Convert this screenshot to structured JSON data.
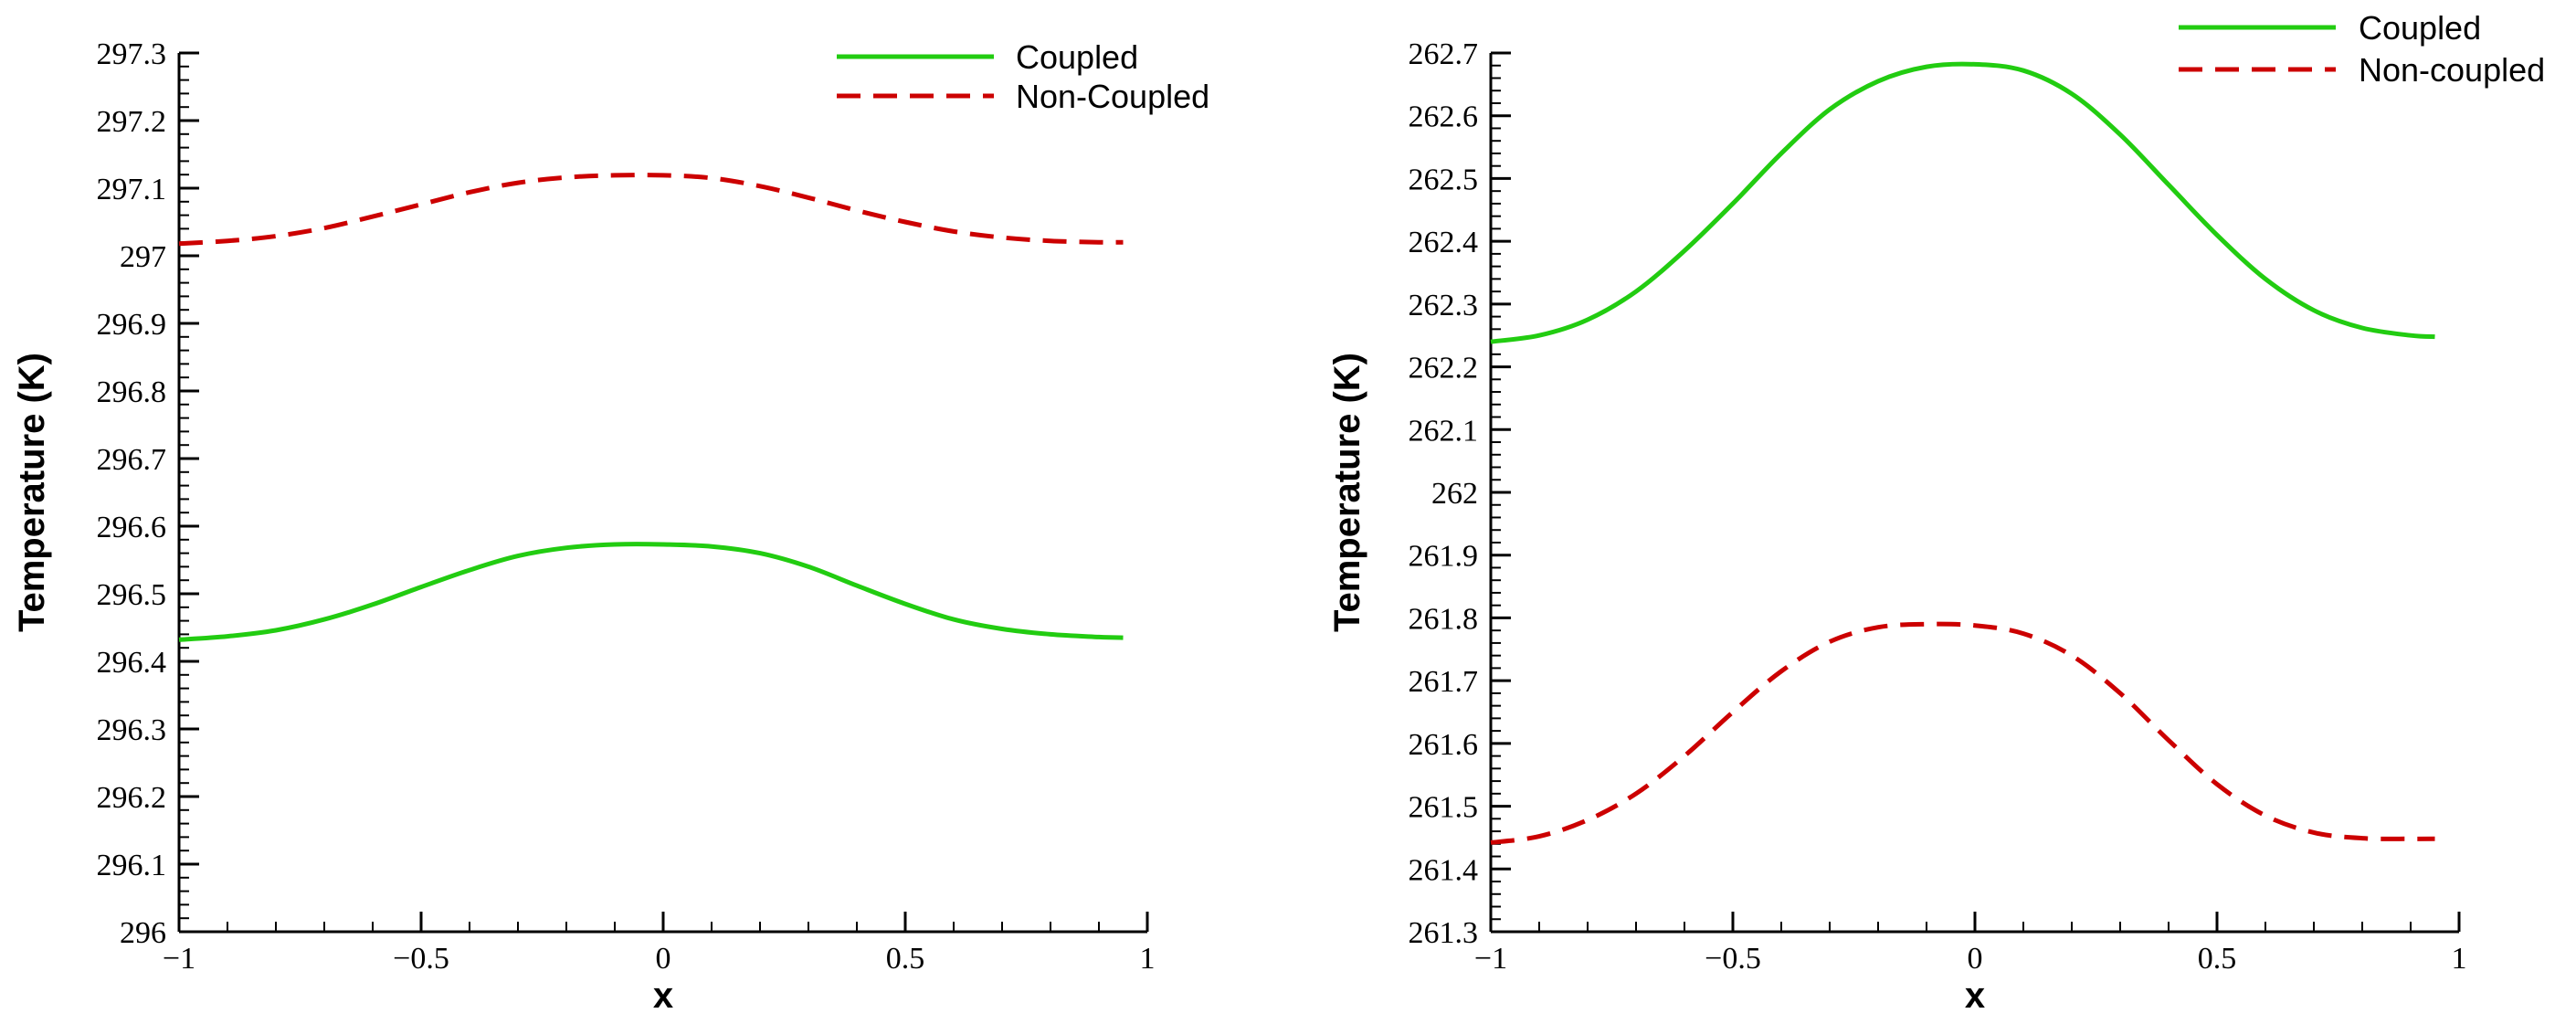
{
  "chart_data": [
    {
      "type": "line",
      "title": "",
      "xlabel": "x",
      "ylabel": "Temperature (K)",
      "xlim": [
        -1,
        1
      ],
      "ylim": [
        296,
        297.3
      ],
      "x_ticks": [
        -1,
        -0.5,
        0,
        0.5,
        1
      ],
      "x_tick_labels": [
        "−1",
        "−0.5",
        "0",
        "0.5",
        "1"
      ],
      "y_ticks": [
        296,
        296.1,
        296.2,
        296.3,
        296.4,
        296.5,
        296.6,
        296.7,
        296.8,
        296.9,
        297,
        297.1,
        297.2,
        297.3
      ],
      "y_tick_labels": [
        "296",
        "296.1",
        "296.2",
        "296.3",
        "296.4",
        "296.5",
        "296.6",
        "296.7",
        "296.8",
        "296.9",
        "297",
        "297.1",
        "297.2",
        "297.3"
      ],
      "grid": false,
      "legend_position": "top-right",
      "series": [
        {
          "name": "Coupled",
          "color": "#22cc11",
          "dash": "solid",
          "x": [
            -1,
            -0.9,
            -0.8,
            -0.7,
            -0.6,
            -0.5,
            -0.4,
            -0.3,
            -0.2,
            -0.1,
            0,
            0.1,
            0.2,
            0.3,
            0.4,
            0.5,
            0.6,
            0.7,
            0.8,
            0.9,
            0.95
          ],
          "values": [
            296.432,
            296.437,
            296.446,
            296.462,
            296.484,
            296.51,
            296.535,
            296.556,
            296.568,
            296.573,
            296.573,
            296.57,
            296.56,
            296.54,
            296.512,
            296.485,
            296.462,
            296.448,
            296.44,
            296.436,
            296.435
          ]
        },
        {
          "name": "Non-Coupled",
          "color": "#cc0000",
          "dash": "dashed",
          "x": [
            -1,
            -0.9,
            -0.8,
            -0.7,
            -0.6,
            -0.5,
            -0.4,
            -0.3,
            -0.2,
            -0.1,
            0,
            0.1,
            0.2,
            0.3,
            0.4,
            0.5,
            0.6,
            0.7,
            0.8,
            0.9,
            0.95
          ],
          "values": [
            297.018,
            297.022,
            297.029,
            297.041,
            297.058,
            297.076,
            297.094,
            297.108,
            297.116,
            297.119,
            297.119,
            297.115,
            297.103,
            297.086,
            297.067,
            297.05,
            297.036,
            297.027,
            297.022,
            297.02,
            297.02
          ]
        }
      ]
    },
    {
      "type": "line",
      "title": "",
      "xlabel": "x",
      "ylabel": "Temperature (K)",
      "xlim": [
        -1,
        1
      ],
      "ylim": [
        261.3,
        262.7
      ],
      "x_ticks": [
        -1,
        -0.5,
        0,
        0.5,
        1
      ],
      "x_tick_labels": [
        "−1",
        "−0.5",
        "0",
        "0.5",
        "1"
      ],
      "y_ticks": [
        261.3,
        261.4,
        261.5,
        261.6,
        261.7,
        261.8,
        261.9,
        262,
        262.1,
        262.2,
        262.3,
        262.4,
        262.5,
        262.6,
        262.7
      ],
      "y_tick_labels": [
        "261.3",
        "261.4",
        "261.5",
        "261.6",
        "261.7",
        "261.8",
        "261.9",
        "262",
        "262.1",
        "262.2",
        "262.3",
        "262.4",
        "262.5",
        "262.6",
        "262.7"
      ],
      "grid": false,
      "legend_position": "top-right",
      "series": [
        {
          "name": "Coupled",
          "color": "#22cc11",
          "dash": "solid",
          "x": [
            -1,
            -0.9,
            -0.8,
            -0.7,
            -0.6,
            -0.5,
            -0.4,
            -0.3,
            -0.2,
            -0.1,
            0,
            0.1,
            0.2,
            0.3,
            0.4,
            0.5,
            0.6,
            0.7,
            0.8,
            0.9,
            0.95
          ],
          "values": [
            262.24,
            262.25,
            262.275,
            262.32,
            262.385,
            262.46,
            262.54,
            262.61,
            262.655,
            262.678,
            262.682,
            262.672,
            262.635,
            262.57,
            262.49,
            262.41,
            262.34,
            262.29,
            262.262,
            262.25,
            262.248
          ]
        },
        {
          "name": "Non-coupled",
          "color": "#cc0000",
          "dash": "dashed",
          "x": [
            -1,
            -0.9,
            -0.8,
            -0.7,
            -0.6,
            -0.5,
            -0.4,
            -0.3,
            -0.2,
            -0.1,
            0,
            0.1,
            0.2,
            0.3,
            0.4,
            0.5,
            0.6,
            0.7,
            0.8,
            0.9,
            0.95
          ],
          "values": [
            261.442,
            261.452,
            261.478,
            261.52,
            261.58,
            261.65,
            261.715,
            261.762,
            261.785,
            261.79,
            261.788,
            261.775,
            261.74,
            261.68,
            261.605,
            261.535,
            261.485,
            261.458,
            261.449,
            261.448,
            261.448
          ]
        }
      ]
    }
  ]
}
